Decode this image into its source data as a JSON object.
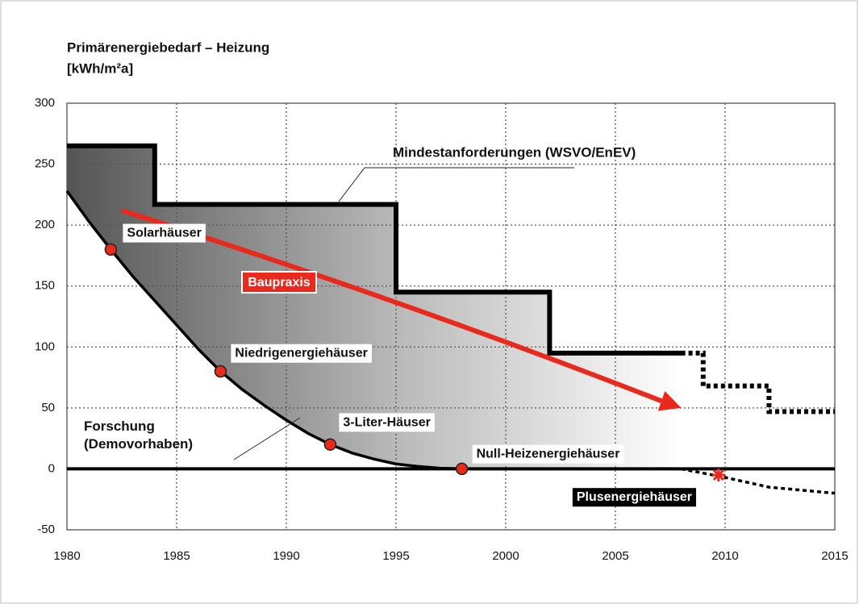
{
  "chart_data": {
    "type": "line",
    "title": [
      "Primärenergiebedarf – Heizung",
      "[kWh/m²a]"
    ],
    "xlim": [
      1980,
      2015
    ],
    "xticks": [
      1980,
      1985,
      1990,
      1995,
      2000,
      2005,
      2010,
      2015
    ],
    "ylim": [
      -50,
      300
    ],
    "yticks": [
      -50,
      0,
      50,
      100,
      150,
      200,
      250,
      300
    ],
    "grid": true,
    "series": [
      {
        "name": "Mindestanforderungen (WSVO/EnEV)",
        "color": "#000000",
        "style": "solid",
        "x": [
          1980,
          1984,
          1984,
          1995,
          1995,
          2002,
          2002,
          2008
        ],
        "values": [
          265,
          265,
          217,
          217,
          145,
          145,
          95,
          95
        ]
      },
      {
        "color": "#000000",
        "style": "dashed",
        "x": [
          2008,
          2009,
          2009,
          2012,
          2012,
          2015
        ],
        "values": [
          95,
          95,
          68,
          68,
          47,
          47
        ]
      },
      {
        "name": "Forschung (Demovorhaben)",
        "color": "#000000",
        "style": "solid",
        "x": [
          1980,
          1981,
          1982,
          1983,
          1984,
          1985,
          1986,
          1987,
          1988,
          1989,
          1990,
          1991,
          1992,
          1993,
          1994,
          1995,
          1996,
          1997,
          1998,
          2008
        ],
        "values": [
          228,
          203,
          180,
          158,
          138,
          118,
          98,
          80,
          65,
          52,
          40,
          29,
          20,
          13,
          8,
          4,
          2,
          0.5,
          0,
          0
        ]
      },
      {
        "color": "#000000",
        "style": "dashed",
        "x": [
          2008,
          2010,
          2012,
          2015
        ],
        "values": [
          0,
          -7,
          -15,
          -20
        ]
      },
      {
        "name": "Baupraxis",
        "color": "#e8291c",
        "style": "arrow",
        "x": [
          1982.5,
          2008
        ],
        "values": [
          212,
          50
        ]
      }
    ],
    "points": [
      {
        "label": "Solarhäuser",
        "x": 1982,
        "y": 180
      },
      {
        "label": "Niedrigenergiehäuser",
        "x": 1987,
        "y": 80
      },
      {
        "label": "3-Liter-Häuser",
        "x": 1992,
        "y": 20
      },
      {
        "label": "Null-Heizenergiehäuser",
        "x": 1998,
        "y": 0
      },
      {
        "label": "Plusenergiehäuser",
        "x": 2009.7,
        "y": -5
      }
    ]
  }
}
